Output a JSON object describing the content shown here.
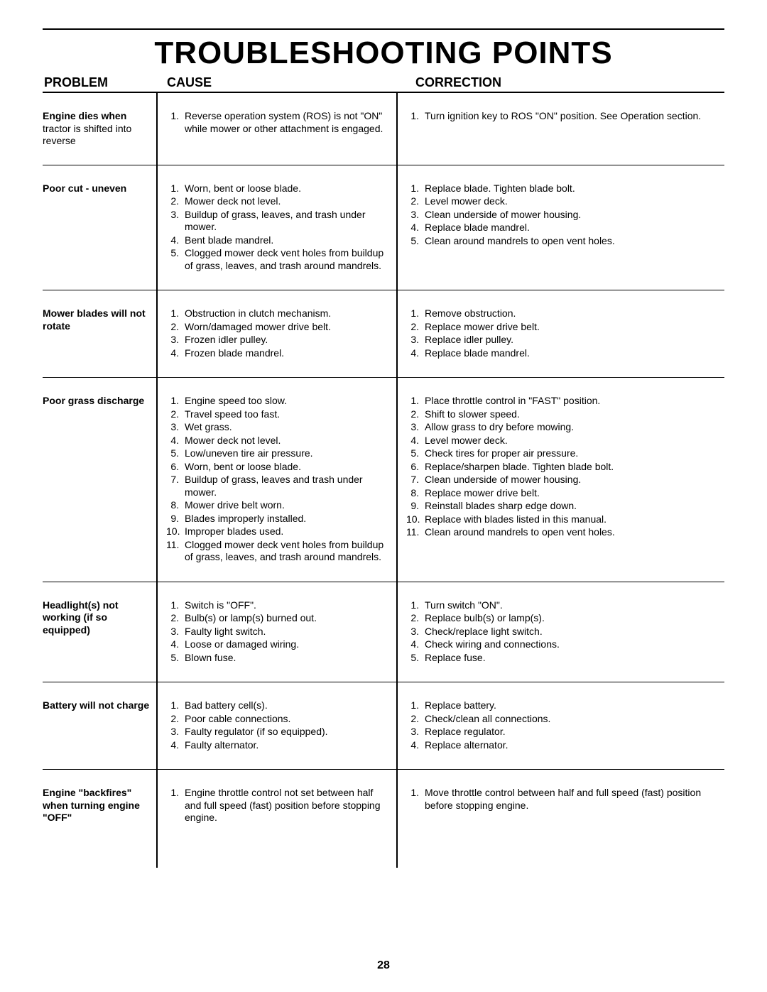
{
  "title": "TROUBLESHOOTING POINTS",
  "page_number": "28",
  "headers": {
    "problem": "PROBLEM",
    "cause": "CAUSE",
    "correction": "CORRECTION"
  },
  "sections": [
    {
      "problem_title": "Engine dies when",
      "problem_rest": "tractor is shifted into reverse",
      "causes": [
        {
          "n": "1.",
          "t": "Reverse operation system (ROS) is not \"ON\" while mower or other attachment is engaged."
        }
      ],
      "corrections": [
        {
          "n": "1.",
          "t": "Turn ignition key to ROS \"ON\" position. See Operation section."
        }
      ]
    },
    {
      "problem_title": "Poor cut - uneven",
      "problem_rest": "",
      "causes": [
        {
          "n": "1.",
          "t": "Worn, bent or loose blade."
        },
        {
          "n": "2.",
          "t": "Mower deck not level."
        },
        {
          "n": "3.",
          "t": "Buildup of grass, leaves, and trash under mower."
        },
        {
          "n": "4.",
          "t": "Bent blade mandrel."
        },
        {
          "n": "5.",
          "t": "Clogged mower deck vent holes from buildup of grass, leaves, and trash around mandrels."
        }
      ],
      "corrections": [
        {
          "n": "1.",
          "t": "Replace blade.  Tighten blade bolt."
        },
        {
          "n": "2.",
          "t": "Level mower deck."
        },
        {
          "n": "3.",
          "t": "Clean underside of mower housing."
        },
        {
          "n": "4.",
          "t": "Replace blade mandrel."
        },
        {
          "n": "5.",
          "t": "Clean around mandrels to open vent holes."
        }
      ]
    },
    {
      "problem_title": "Mower blades will not rotate",
      "problem_rest": "",
      "causes": [
        {
          "n": "1.",
          "t": "Obstruction in clutch mechanism."
        },
        {
          "n": "2.",
          "t": "Worn/damaged mower drive belt."
        },
        {
          "n": "3.",
          "t": "Frozen idler pulley."
        },
        {
          "n": "4.",
          "t": "Frozen blade mandrel."
        }
      ],
      "corrections": [
        {
          "n": "1.",
          "t": "Remove obstruction."
        },
        {
          "n": "2.",
          "t": "Replace mower drive belt."
        },
        {
          "n": "3.",
          "t": "Replace idler pulley."
        },
        {
          "n": "4.",
          "t": "Replace blade mandrel."
        }
      ]
    },
    {
      "problem_title": "Poor grass discharge",
      "problem_rest": "",
      "causes": [
        {
          "n": "1.",
          "t": "Engine speed too slow."
        },
        {
          "n": "2.",
          "t": "Travel speed too fast."
        },
        {
          "n": "3.",
          "t": "Wet grass."
        },
        {
          "n": "4.",
          "t": "Mower deck not level."
        },
        {
          "n": "5.",
          "t": "Low/uneven tire air pressure."
        },
        {
          "n": "6.",
          "t": "Worn, bent or loose blade."
        },
        {
          "n": "7.",
          "t": "Buildup of grass, leaves and trash under mower."
        },
        {
          "n": "8.",
          "t": "Mower drive belt worn."
        },
        {
          "n": "9.",
          "t": "Blades improperly installed."
        },
        {
          "n": "10.",
          "t": "Improper blades used."
        },
        {
          "n": "11.",
          "t": "Clogged mower deck vent holes from buildup of grass, leaves, and trash around mandrels."
        }
      ],
      "corrections": [
        {
          "n": "1.",
          "t": "Place throttle control in \"FAST\" position."
        },
        {
          "n": "2.",
          "t": "Shift to slower speed."
        },
        {
          "n": "3.",
          "t": "Allow grass to dry before mowing."
        },
        {
          "n": "4.",
          "t": "Level mower deck."
        },
        {
          "n": "5.",
          "t": "Check tires for proper air pressure."
        },
        {
          "n": "6.",
          "t": "Replace/sharpen blade.  Tighten blade bolt."
        },
        {
          "n": "7.",
          "t": "Clean underside of mower housing."
        },
        {
          "n": "8.",
          "t": "Replace mower drive belt."
        },
        {
          "n": "9.",
          "t": "Reinstall blades sharp edge down."
        },
        {
          "n": "10.",
          "t": "Replace with blades listed in this manual."
        },
        {
          "n": "11.",
          "t": "Clean around mandrels to open vent holes."
        }
      ]
    },
    {
      "problem_title": "Headlight(s) not working (if so equipped)",
      "problem_rest": "",
      "causes": [
        {
          "n": "1.",
          "t": "Switch is \"OFF\"."
        },
        {
          "n": "2.",
          "t": "Bulb(s) or lamp(s) burned out."
        },
        {
          "n": "3.",
          "t": "Faulty light switch."
        },
        {
          "n": "4.",
          "t": "Loose or damaged wiring."
        },
        {
          "n": "5.",
          "t": "Blown fuse."
        }
      ],
      "corrections": [
        {
          "n": "1.",
          "t": "Turn switch \"ON\"."
        },
        {
          "n": "2.",
          "t": "Replace bulb(s) or lamp(s)."
        },
        {
          "n": "3.",
          "t": "Check/replace light switch."
        },
        {
          "n": "4.",
          "t": "Check wiring and connections."
        },
        {
          "n": "5.",
          "t": "Replace fuse."
        }
      ]
    },
    {
      "problem_title": "Battery will not charge",
      "problem_rest": "",
      "causes": [
        {
          "n": "1.",
          "t": "Bad battery cell(s)."
        },
        {
          "n": "2.",
          "t": "Poor cable connections."
        },
        {
          "n": "3.",
          "t": "Faulty regulator (if so equipped)."
        },
        {
          "n": "4.",
          "t": "Faulty alternator."
        }
      ],
      "corrections": [
        {
          "n": "1.",
          "t": "Replace battery."
        },
        {
          "n": "2.",
          "t": "Check/clean all connections."
        },
        {
          "n": "3.",
          "t": "Replace regulator."
        },
        {
          "n": "4.",
          "t": "Replace alternator."
        }
      ]
    },
    {
      "problem_title": "Engine \"backfires\" when turning engine \"OFF\"",
      "problem_rest": "",
      "causes": [
        {
          "n": "1.",
          "t": "Engine throttle control not set between half and full speed (fast) position before stopping engine."
        }
      ],
      "corrections": [
        {
          "n": "1.",
          "t": "Move throttle control between half and full speed (fast) position before stopping engine."
        }
      ]
    }
  ]
}
